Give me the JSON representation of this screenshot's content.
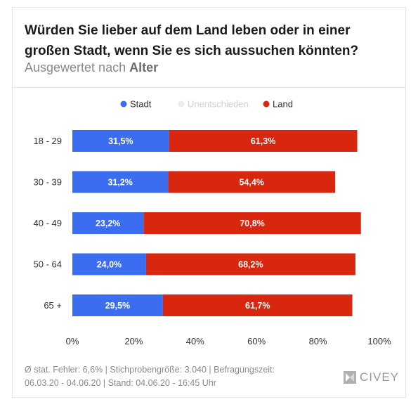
{
  "header": {
    "title": "Würden Sie lieber auf dem Land leben oder in einer großen Stadt, wenn Sie es sich aussuchen könnten?",
    "subtitle_prefix": "Ausgewertet nach ",
    "subtitle_bold": "Alter"
  },
  "chart_data": {
    "type": "bar",
    "orientation": "horizontal",
    "stacked": true,
    "categories": [
      "18 - 29",
      "30 - 39",
      "40 - 49",
      "50 - 64",
      "65 +"
    ],
    "series": [
      {
        "name": "Stadt",
        "color": "#3a6df0",
        "values": [
          31.5,
          31.2,
          23.2,
          24.0,
          29.5
        ],
        "labels": [
          "31,5%",
          "31,2%",
          "23,2%",
          "24,0%",
          "29,5%"
        ]
      },
      {
        "name": "Unentschieden",
        "color": "#ececec",
        "values": [
          0,
          0,
          0,
          0,
          0
        ],
        "labels": [
          "",
          "",
          "",
          "",
          ""
        ]
      },
      {
        "name": "Land",
        "color": "#d9260f",
        "values": [
          61.3,
          54.4,
          70.8,
          68.2,
          61.7
        ],
        "labels": [
          "61,3%",
          "54,4%",
          "70,8%",
          "68,2%",
          "61,7%"
        ]
      }
    ],
    "xlim": [
      0,
      100
    ],
    "xticks": [
      0,
      20,
      40,
      60,
      80,
      100
    ],
    "xtick_labels": [
      "0%",
      "20%",
      "40%",
      "60%",
      "80%",
      "100%"
    ],
    "legend_position": "top-center",
    "grid": false
  },
  "footer": {
    "line1": "Ø stat. Fehler: 6,6% | Stichprobengröße: 3.040 | Befragungszeit:",
    "line2": "06.03.20 - 04.06.20 | Stand: 04.06.20 - 16:45 Uhr"
  },
  "brand": {
    "name": "CIVEY",
    "logo_icon": "civey-logo-icon"
  }
}
